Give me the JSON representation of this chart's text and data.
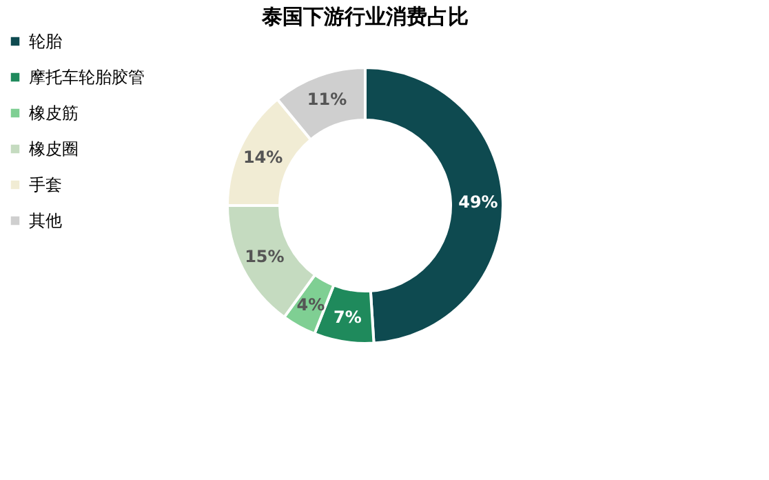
{
  "chart_data": {
    "type": "donut",
    "title": "泰国下游行业消费占比",
    "categories": [
      "轮胎",
      "摩托车轮胎胶管",
      "橡皮筋",
      "橡皮圈",
      "手套",
      "其他"
    ],
    "values": [
      49,
      7,
      4,
      15,
      14,
      11
    ],
    "colors": [
      "#0e4a50",
      "#1f8a5c",
      "#7fcf93",
      "#c5dbc0",
      "#f1ecd4",
      "#cfcfcf"
    ],
    "value_labels": [
      "49%",
      "7%",
      "4%",
      "15%",
      "14%",
      "11%"
    ],
    "legend": "left"
  }
}
